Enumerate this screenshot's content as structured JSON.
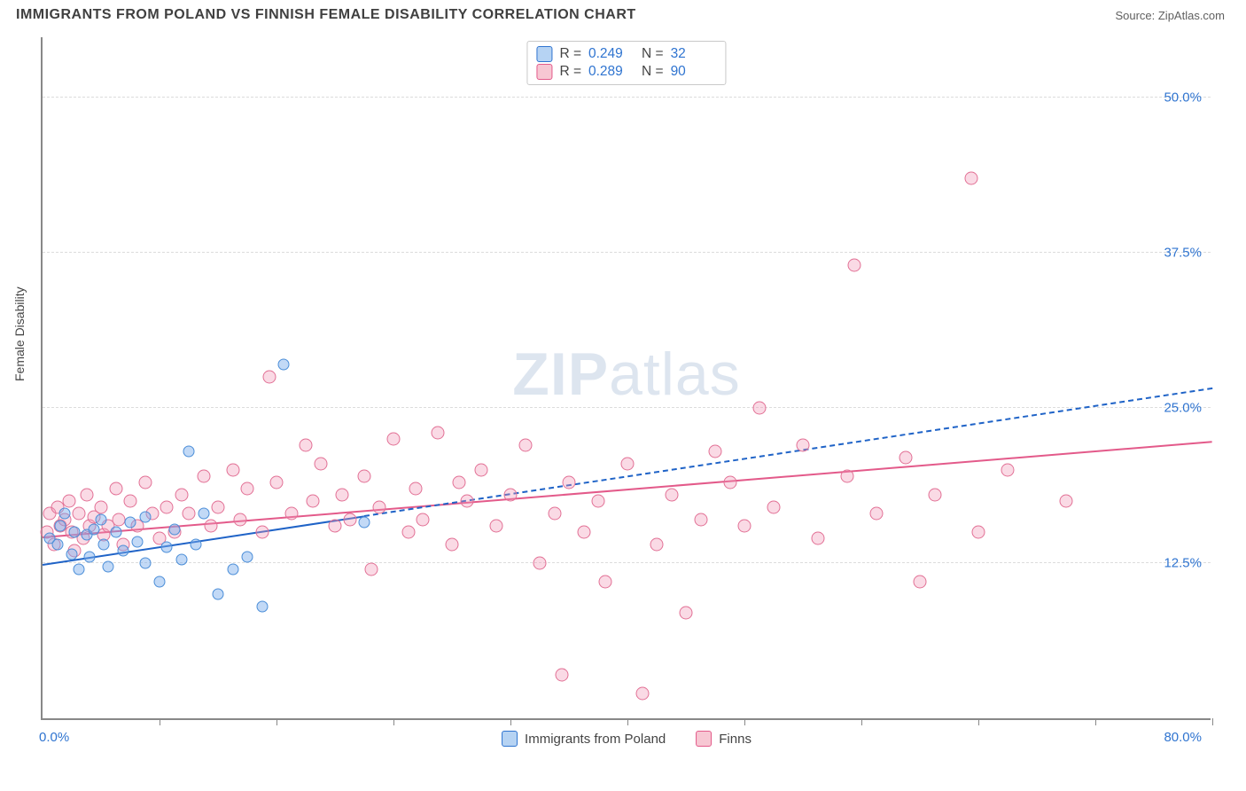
{
  "header": {
    "title": "IMMIGRANTS FROM POLAND VS FINNISH FEMALE DISABILITY CORRELATION CHART",
    "source_prefix": "Source: ",
    "source_name": "ZipAtlas.com"
  },
  "watermark": {
    "zip": "ZIP",
    "atlas": "atlas"
  },
  "axes": {
    "y_label": "Female Disability",
    "x_min_label": "0.0%",
    "x_max_label": "80.0%",
    "x_range": [
      0,
      80
    ],
    "y_range": [
      0,
      55
    ],
    "y_gridlines": [
      {
        "v": 12.5,
        "label": "12.5%"
      },
      {
        "v": 25.0,
        "label": "25.0%"
      },
      {
        "v": 37.5,
        "label": "37.5%"
      },
      {
        "v": 50.0,
        "label": "50.0%"
      }
    ],
    "x_ticks_at": [
      8,
      16,
      24,
      32,
      40,
      48,
      56,
      64,
      72,
      80
    ],
    "grid_color": "#dcdcdc",
    "axis_color": "#888888",
    "label_color": "#2f74d0"
  },
  "legend_top": {
    "rows": [
      {
        "swatch_fill": "#b6d3f3",
        "swatch_stroke": "#2f74d0",
        "r_label": "R =",
        "r_val": "0.249",
        "n_label": "N =",
        "n_val": "32"
      },
      {
        "swatch_fill": "#f7c7d3",
        "swatch_stroke": "#e35a8a",
        "r_label": "R =",
        "r_val": "0.289",
        "n_label": "N =",
        "n_val": "90"
      }
    ]
  },
  "legend_bottom": {
    "items": [
      {
        "swatch_fill": "#b6d3f3",
        "swatch_stroke": "#2f74d0",
        "label": "Immigrants from Poland"
      },
      {
        "swatch_fill": "#f7c7d3",
        "swatch_stroke": "#e35a8a",
        "label": "Finns"
      }
    ]
  },
  "series": {
    "poland": {
      "marker": {
        "r": 6.5,
        "fill": "rgba(120,170,235,0.45)",
        "stroke": "#4b8ed8",
        "stroke_w": 1.2
      },
      "trend": {
        "color": "#1f63c7",
        "width": 2.2,
        "dash": "4 4",
        "x1": 0,
        "y1": 12.3,
        "x2": 80,
        "y2": 26.5,
        "solid_until_x": 22
      },
      "points": [
        [
          0.5,
          14.5
        ],
        [
          1.0,
          14.0
        ],
        [
          1.2,
          15.5
        ],
        [
          1.5,
          16.5
        ],
        [
          2.0,
          13.2
        ],
        [
          2.2,
          15.0
        ],
        [
          2.5,
          12.0
        ],
        [
          3.0,
          14.8
        ],
        [
          3.2,
          13.0
        ],
        [
          3.5,
          15.2
        ],
        [
          4.0,
          16.0
        ],
        [
          4.2,
          14.0
        ],
        [
          4.5,
          12.2
        ],
        [
          5.0,
          15.0
        ],
        [
          5.5,
          13.5
        ],
        [
          6.0,
          15.8
        ],
        [
          6.5,
          14.2
        ],
        [
          7.0,
          12.5
        ],
        [
          7.0,
          16.2
        ],
        [
          8.0,
          11.0
        ],
        [
          8.5,
          13.8
        ],
        [
          9.0,
          15.2
        ],
        [
          9.5,
          12.8
        ],
        [
          10.0,
          21.5
        ],
        [
          10.5,
          14.0
        ],
        [
          11.0,
          16.5
        ],
        [
          12.0,
          10.0
        ],
        [
          13.0,
          12.0
        ],
        [
          14.0,
          13.0
        ],
        [
          15.0,
          9.0
        ],
        [
          16.5,
          28.5
        ],
        [
          22.0,
          15.8
        ]
      ]
    },
    "finns": {
      "marker": {
        "r": 7.5,
        "fill": "rgba(240,150,180,0.35)",
        "stroke": "#e27095",
        "stroke_w": 1.2
      },
      "trend": {
        "color": "#e35a8a",
        "width": 2.6,
        "dash": "",
        "x1": 0,
        "y1": 14.5,
        "x2": 80,
        "y2": 22.2
      },
      "points": [
        [
          0.3,
          15.0
        ],
        [
          0.5,
          16.5
        ],
        [
          0.8,
          14.0
        ],
        [
          1.0,
          17.0
        ],
        [
          1.2,
          15.5
        ],
        [
          1.5,
          16.0
        ],
        [
          1.8,
          17.5
        ],
        [
          2.0,
          15.0
        ],
        [
          2.2,
          13.5
        ],
        [
          2.5,
          16.5
        ],
        [
          2.8,
          14.5
        ],
        [
          3.0,
          18.0
        ],
        [
          3.2,
          15.5
        ],
        [
          3.5,
          16.2
        ],
        [
          4.0,
          17.0
        ],
        [
          4.2,
          14.8
        ],
        [
          4.5,
          15.5
        ],
        [
          5.0,
          18.5
        ],
        [
          5.2,
          16.0
        ],
        [
          5.5,
          14.0
        ],
        [
          6.0,
          17.5
        ],
        [
          6.5,
          15.5
        ],
        [
          7.0,
          19.0
        ],
        [
          7.5,
          16.5
        ],
        [
          8.0,
          14.5
        ],
        [
          8.5,
          17.0
        ],
        [
          9.0,
          15.0
        ],
        [
          9.5,
          18.0
        ],
        [
          10.0,
          16.5
        ],
        [
          11.0,
          19.5
        ],
        [
          11.5,
          15.5
        ],
        [
          12.0,
          17.0
        ],
        [
          13.0,
          20.0
        ],
        [
          13.5,
          16.0
        ],
        [
          14.0,
          18.5
        ],
        [
          15.0,
          15.0
        ],
        [
          15.5,
          27.5
        ],
        [
          16.0,
          19.0
        ],
        [
          17.0,
          16.5
        ],
        [
          18.0,
          22.0
        ],
        [
          18.5,
          17.5
        ],
        [
          19.0,
          20.5
        ],
        [
          20.0,
          15.5
        ],
        [
          20.5,
          18.0
        ],
        [
          21.0,
          16.0
        ],
        [
          22.0,
          19.5
        ],
        [
          22.5,
          12.0
        ],
        [
          23.0,
          17.0
        ],
        [
          24.0,
          22.5
        ],
        [
          25.0,
          15.0
        ],
        [
          25.5,
          18.5
        ],
        [
          26.0,
          16.0
        ],
        [
          27.0,
          23.0
        ],
        [
          28.0,
          14.0
        ],
        [
          28.5,
          19.0
        ],
        [
          29.0,
          17.5
        ],
        [
          30.0,
          20.0
        ],
        [
          31.0,
          15.5
        ],
        [
          32.0,
          18.0
        ],
        [
          33.0,
          22.0
        ],
        [
          34.0,
          12.5
        ],
        [
          35.0,
          16.5
        ],
        [
          35.5,
          3.5
        ],
        [
          36.0,
          19.0
        ],
        [
          37.0,
          15.0
        ],
        [
          38.0,
          17.5
        ],
        [
          38.5,
          11.0
        ],
        [
          40.0,
          20.5
        ],
        [
          41.0,
          2.0
        ],
        [
          42.0,
          14.0
        ],
        [
          43.0,
          18.0
        ],
        [
          44.0,
          8.5
        ],
        [
          45.0,
          16.0
        ],
        [
          46.0,
          21.5
        ],
        [
          47.0,
          19.0
        ],
        [
          48.0,
          15.5
        ],
        [
          49.0,
          25.0
        ],
        [
          50.0,
          17.0
        ],
        [
          52.0,
          22.0
        ],
        [
          53.0,
          14.5
        ],
        [
          55.0,
          19.5
        ],
        [
          55.5,
          36.5
        ],
        [
          57.0,
          16.5
        ],
        [
          59.0,
          21.0
        ],
        [
          60.0,
          11.0
        ],
        [
          61.0,
          18.0
        ],
        [
          63.5,
          43.5
        ],
        [
          64.0,
          15.0
        ],
        [
          66.0,
          20.0
        ],
        [
          70.0,
          17.5
        ]
      ]
    }
  }
}
